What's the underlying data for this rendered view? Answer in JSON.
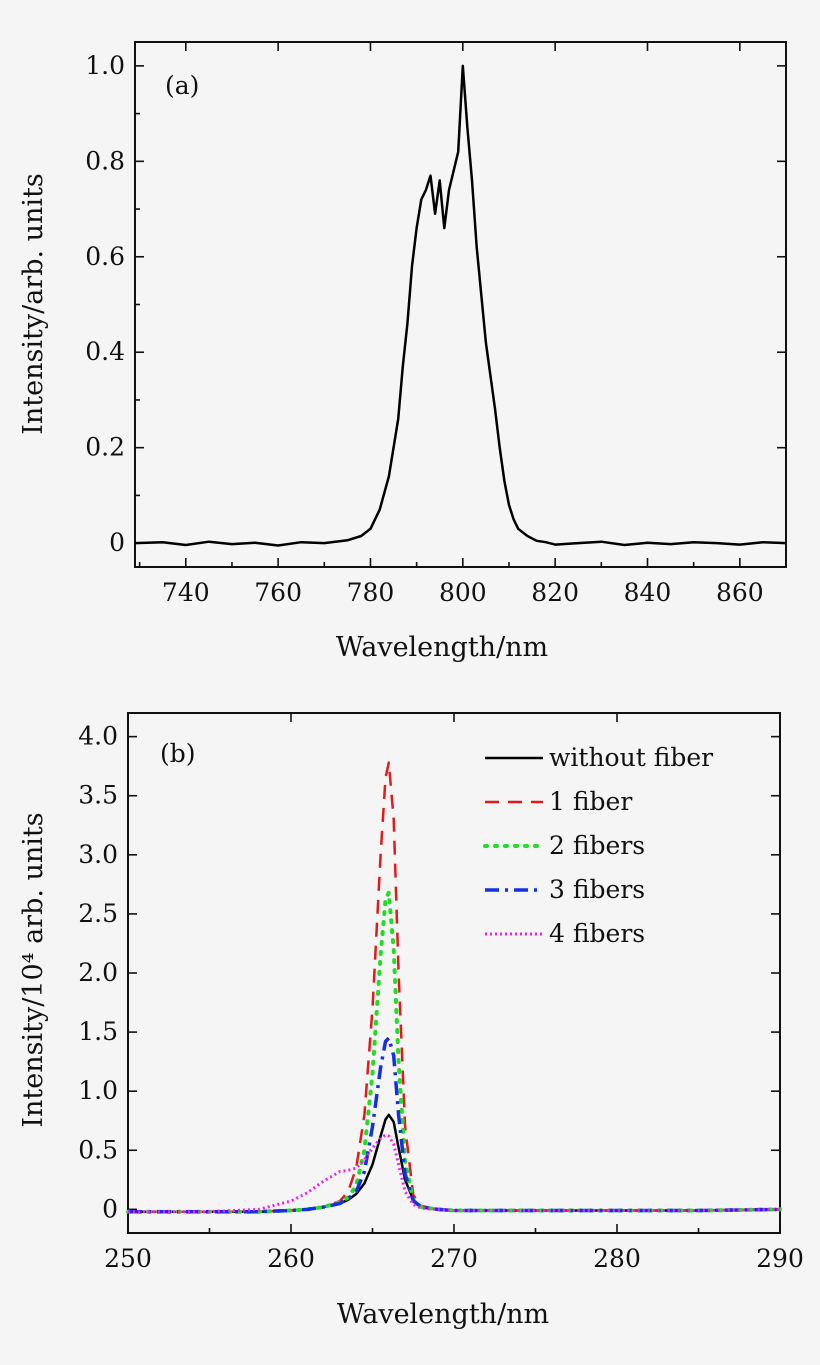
{
  "chart_data": [
    {
      "type": "line",
      "panel_label": "(a)",
      "xlabel": "Wavelength/nm",
      "ylabel": "Intensity/arb. units",
      "xlim": [
        729,
        870
      ],
      "ylim": [
        -0.05,
        1.05
      ],
      "x_ticks": [
        740,
        760,
        780,
        800,
        820,
        840,
        860
      ],
      "x_tick_labels": [
        "740",
        "760",
        "780",
        "800",
        "820",
        "840",
        "860"
      ],
      "x_minor_ticks": [
        730,
        750,
        770,
        790,
        810,
        830,
        850,
        870
      ],
      "y_ticks": [
        0,
        0.2,
        0.4,
        0.6,
        0.8,
        1.0
      ],
      "y_tick_labels": [
        "0",
        "0.2",
        "0.4",
        "0.6",
        "0.8",
        "1.0"
      ],
      "y_minor_ticks": [
        0.1,
        0.3,
        0.5,
        0.7,
        0.9
      ],
      "grid": false,
      "series": [
        {
          "color": "#000000",
          "dash": "solid",
          "x": [
            729,
            735,
            740,
            745,
            750,
            755,
            760,
            765,
            770,
            775,
            778,
            780,
            782,
            784,
            786,
            787,
            788,
            789,
            790,
            791,
            792,
            793,
            794,
            795,
            796,
            797,
            798,
            799,
            800,
            801,
            802,
            803,
            804,
            805,
            806,
            807,
            808,
            809,
            810,
            811,
            812,
            814,
            816,
            818,
            820,
            825,
            830,
            835,
            840,
            845,
            850,
            855,
            860,
            865,
            870
          ],
          "y": [
            0.0,
            0.002,
            -0.004,
            0.003,
            -0.002,
            0.001,
            -0.005,
            0.002,
            0.0,
            0.006,
            0.015,
            0.03,
            0.07,
            0.14,
            0.26,
            0.37,
            0.46,
            0.58,
            0.66,
            0.72,
            0.74,
            0.77,
            0.69,
            0.76,
            0.66,
            0.74,
            0.78,
            0.82,
            1.0,
            0.87,
            0.76,
            0.62,
            0.52,
            0.42,
            0.35,
            0.28,
            0.2,
            0.13,
            0.08,
            0.05,
            0.03,
            0.015,
            0.005,
            0.002,
            -0.003,
            0.0,
            0.003,
            -0.004,
            0.001,
            -0.002,
            0.002,
            0.0,
            -0.003,
            0.002,
            0.0
          ]
        }
      ]
    },
    {
      "type": "line",
      "panel_label": "(b)",
      "xlabel": "Wavelength/nm",
      "ylabel": "Intensity/10⁴ arb. units",
      "xlim": [
        250,
        290
      ],
      "ylim": [
        -0.2,
        4.2
      ],
      "x_ticks": [
        250,
        260,
        270,
        280,
        290
      ],
      "x_tick_labels": [
        "250",
        "260",
        "270",
        "280",
        "290"
      ],
      "x_minor_ticks": [
        255,
        265,
        275,
        285
      ],
      "y_ticks": [
        0,
        0.5,
        1.0,
        1.5,
        2.0,
        2.5,
        3.0,
        3.5,
        4.0
      ],
      "y_tick_labels": [
        "0",
        "0.5",
        "1.0",
        "1.5",
        "2.0",
        "2.5",
        "3.0",
        "3.5",
        "4.0"
      ],
      "grid": false,
      "legend_position": "top-right",
      "series": [
        {
          "name": "without fiber",
          "color": "#000000",
          "dash": "solid",
          "x": [
            250,
            255,
            258,
            260,
            261,
            262,
            263,
            263.5,
            264,
            264.5,
            265,
            265.5,
            265.8,
            266,
            266.3,
            266.6,
            267,
            267.5,
            268,
            269,
            270,
            275,
            280,
            285,
            290
          ],
          "y": [
            -0.02,
            -0.02,
            -0.02,
            -0.01,
            0.0,
            0.02,
            0.05,
            0.08,
            0.13,
            0.22,
            0.38,
            0.62,
            0.76,
            0.8,
            0.74,
            0.52,
            0.25,
            0.08,
            0.02,
            0.0,
            -0.01,
            -0.01,
            -0.01,
            -0.01,
            0.0
          ]
        },
        {
          "name": "1 fiber",
          "color": "#e31a1c",
          "dash": "dashed",
          "x": [
            250,
            255,
            258,
            260,
            261,
            262,
            263,
            263.5,
            264,
            264.5,
            265,
            265.5,
            265.8,
            266,
            266.3,
            266.6,
            267,
            267.5,
            268,
            269,
            270,
            275,
            280,
            285,
            290
          ],
          "y": [
            -0.02,
            -0.02,
            -0.02,
            -0.01,
            0.0,
            0.02,
            0.07,
            0.15,
            0.35,
            0.8,
            1.7,
            3.0,
            3.65,
            3.78,
            3.3,
            2.0,
            0.7,
            0.12,
            0.03,
            0.0,
            -0.01,
            -0.01,
            -0.01,
            -0.01,
            0.0
          ]
        },
        {
          "name": "2 fibers",
          "color": "#22dd22",
          "dash": "dotted",
          "x": [
            250,
            255,
            258,
            260,
            261,
            262,
            263,
            263.5,
            264,
            264.5,
            265,
            265.5,
            265.8,
            266,
            266.3,
            266.6,
            267,
            267.5,
            268,
            269,
            270,
            275,
            280,
            285,
            290
          ],
          "y": [
            -0.02,
            -0.02,
            -0.02,
            -0.01,
            0.0,
            0.02,
            0.06,
            0.1,
            0.2,
            0.5,
            1.15,
            2.15,
            2.62,
            2.68,
            2.2,
            1.25,
            0.4,
            0.08,
            0.02,
            0.0,
            -0.01,
            -0.01,
            -0.01,
            -0.01,
            0.0
          ]
        },
        {
          "name": "3 fibers",
          "color": "#1530e0",
          "dash": "dashdot",
          "x": [
            250,
            255,
            258,
            260,
            261,
            262,
            263,
            263.5,
            264,
            264.5,
            265,
            265.5,
            265.8,
            266,
            266.3,
            266.6,
            267,
            267.5,
            268,
            269,
            270,
            275,
            280,
            285,
            290
          ],
          "y": [
            -0.02,
            -0.02,
            -0.02,
            -0.01,
            0.0,
            0.02,
            0.05,
            0.09,
            0.15,
            0.32,
            0.7,
            1.2,
            1.42,
            1.45,
            1.3,
            0.8,
            0.3,
            0.07,
            0.02,
            0.0,
            -0.01,
            -0.01,
            -0.01,
            -0.01,
            0.0
          ]
        },
        {
          "name": "4 fibers",
          "color": "#ee22ee",
          "dash": "dense-dotted",
          "x": [
            250,
            255,
            258,
            260,
            261,
            262,
            262.5,
            263,
            263.5,
            264,
            264.5,
            265,
            265.5,
            265.8,
            266,
            266.3,
            266.6,
            267,
            267.5,
            268,
            269,
            270,
            275,
            280,
            285,
            290
          ],
          "y": [
            -0.02,
            -0.02,
            0.0,
            0.07,
            0.14,
            0.24,
            0.28,
            0.32,
            0.33,
            0.35,
            0.42,
            0.52,
            0.6,
            0.63,
            0.62,
            0.55,
            0.38,
            0.15,
            0.04,
            0.01,
            0.0,
            -0.01,
            -0.01,
            -0.01,
            -0.01,
            0.0
          ]
        }
      ]
    }
  ]
}
